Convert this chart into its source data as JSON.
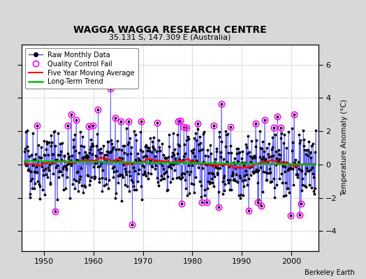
{
  "title": "WAGGA WAGGA RESEARCH CENTRE",
  "subtitle": "35.131 S, 147.309 E (Australia)",
  "credit": "Berkeley Earth",
  "ylabel": "Temperature Anomaly (°C)",
  "xlim": [
    1945.5,
    2005.5
  ],
  "ylim": [
    -5.2,
    7.2
  ],
  "yticks": [
    -4,
    -2,
    0,
    2,
    4,
    6
  ],
  "xticks": [
    1950,
    1960,
    1970,
    1980,
    1990,
    2000
  ],
  "bg_color": "#d8d8d8",
  "plot_bg_color": "#ffffff",
  "stem_color": "#4444ff",
  "dot_color": "#000000",
  "qc_color": "#ff00ff",
  "moving_avg_color": "#ff0000",
  "trend_color": "#00bb00",
  "seed": 42,
  "start_year": 1946,
  "end_year": 2004,
  "moving_avg_window": 60
}
